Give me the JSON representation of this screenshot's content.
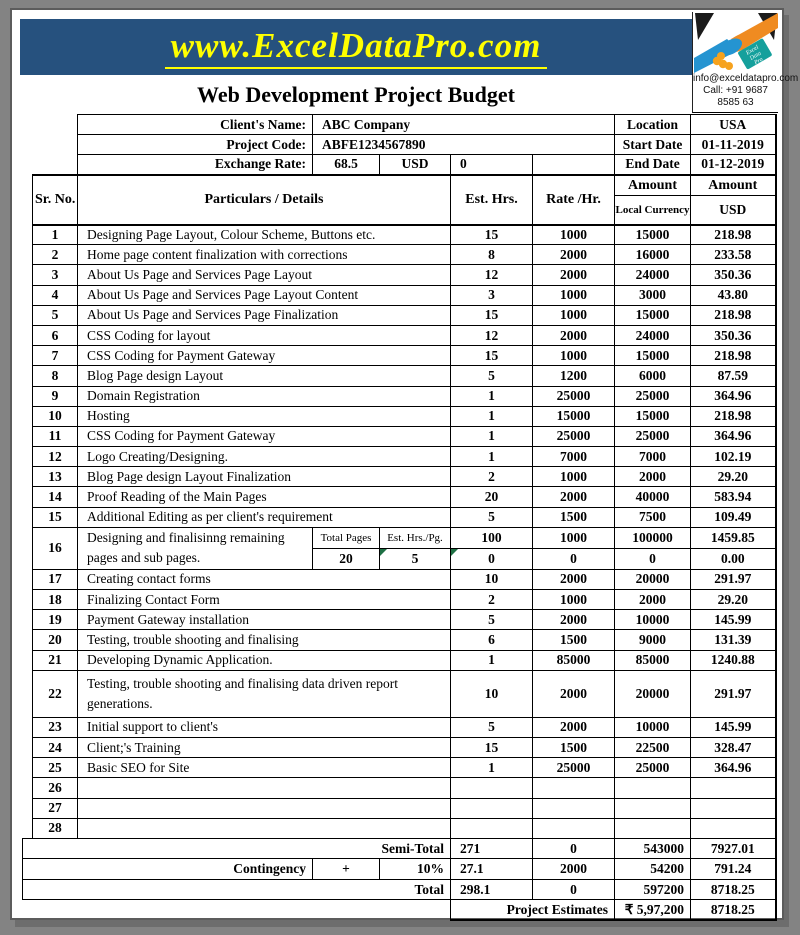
{
  "banner": {
    "url_text": "www.ExcelDataPro.com",
    "bg_color": "#26517E",
    "text_color": "#FFFF00"
  },
  "brand": {
    "logo": "handshake-logo",
    "ribbon_lines": [
      "Excel",
      "Data",
      "Pro"
    ],
    "email": "info@exceldatapro.com",
    "phone": "Call: +91 9687 8585 63"
  },
  "title": "Web Development Project Budget",
  "info": {
    "client_label": "Client's Name:",
    "client_value": "ABC Company",
    "project_label": "Project Code:",
    "project_value": "ABFE1234567890",
    "exchange_label": "Exchange Rate:",
    "exchange_rate": "68.5",
    "exchange_currency": "USD",
    "exchange_converted": "0",
    "location_label": "Location",
    "location_value": "USA",
    "start_label": "Start Date",
    "start_value": "01-11-2019",
    "end_label": "End Date",
    "end_value": "01-12-2019"
  },
  "table": {
    "headers": {
      "sr": "Sr. No.",
      "particulars": "Particulars / Details",
      "est_hrs": "Est. Hrs.",
      "rate_hr": "Rate /Hr.",
      "amount": "Amount",
      "amount_sub": "(Local Currency)",
      "usd": "Amount",
      "usd_sub": "USD"
    },
    "rows": [
      {
        "sr": "1",
        "particulars": "Designing Page Layout, Colour Scheme, Buttons etc.",
        "est_hrs": "15",
        "rate": "1000",
        "amount": "15000",
        "usd": "218.98"
      },
      {
        "sr": "2",
        "particulars": "Home page content finalization with corrections",
        "est_hrs": "8",
        "rate": "2000",
        "amount": "16000",
        "usd": "233.58"
      },
      {
        "sr": "3",
        "particulars": "About Us Page and Services Page Layout",
        "est_hrs": "12",
        "rate": "2000",
        "amount": "24000",
        "usd": "350.36"
      },
      {
        "sr": "4",
        "particulars": "About Us Page and Services Page Layout Content",
        "est_hrs": "3",
        "rate": "1000",
        "amount": "3000",
        "usd": "43.80"
      },
      {
        "sr": "5",
        "particulars": "About Us Page and Services Page Finalization",
        "est_hrs": "15",
        "rate": "1000",
        "amount": "15000",
        "usd": "218.98"
      },
      {
        "sr": "6",
        "particulars": "CSS Coding for layout",
        "est_hrs": "12",
        "rate": "2000",
        "amount": "24000",
        "usd": "350.36"
      },
      {
        "sr": "7",
        "particulars": "CSS Coding for Payment Gateway",
        "est_hrs": "15",
        "rate": "1000",
        "amount": "15000",
        "usd": "218.98"
      },
      {
        "sr": "8",
        "particulars": "Blog Page design Layout",
        "est_hrs": "5",
        "rate": "1200",
        "amount": "6000",
        "usd": "87.59"
      },
      {
        "sr": "9",
        "particulars": "Domain Registration",
        "est_hrs": "1",
        "rate": "25000",
        "amount": "25000",
        "usd": "364.96"
      },
      {
        "sr": "10",
        "particulars": "Hosting",
        "est_hrs": "1",
        "rate": "15000",
        "amount": "15000",
        "usd": "218.98"
      },
      {
        "sr": "11",
        "particulars": "CSS Coding for Payment Gateway",
        "est_hrs": "1",
        "rate": "25000",
        "amount": "25000",
        "usd": "364.96"
      },
      {
        "sr": "12",
        "particulars": "Logo Creating/Designing.",
        "est_hrs": "1",
        "rate": "7000",
        "amount": "7000",
        "usd": "102.19"
      },
      {
        "sr": "13",
        "particulars": "Blog Page design Layout Finalization",
        "est_hrs": "2",
        "rate": "1000",
        "amount": "2000",
        "usd": "29.20"
      },
      {
        "sr": "14",
        "particulars": "Proof Reading of the Main Pages",
        "est_hrs": "20",
        "rate": "2000",
        "amount": "40000",
        "usd": "583.94"
      },
      {
        "sr": "15",
        "particulars": "Additional Editing as per client's requirement",
        "est_hrs": "5",
        "rate": "1500",
        "amount": "7500",
        "usd": "109.49"
      },
      {
        "sr": "16",
        "type": "split",
        "particulars_lines": [
          "Designing and finalisinng remaining",
          "pages and sub pages."
        ],
        "sub_headers": [
          "Total Pages",
          "Est. Hrs./Pg."
        ],
        "sub_values": [
          "20",
          "5"
        ],
        "line1": {
          "est_hrs": "100",
          "rate": "1000",
          "amount": "100000",
          "usd": "1459.85"
        },
        "line2": {
          "est_hrs": "0",
          "rate": "0",
          "amount": "0",
          "usd": "0.00"
        }
      },
      {
        "sr": "17",
        "particulars": "Creating contact forms",
        "est_hrs": "10",
        "rate": "2000",
        "amount": "20000",
        "usd": "291.97"
      },
      {
        "sr": "18",
        "particulars": "Finalizing Contact Form",
        "est_hrs": "2",
        "rate": "1000",
        "amount": "2000",
        "usd": "29.20"
      },
      {
        "sr": "19",
        "particulars": "Payment Gateway installation",
        "est_hrs": "5",
        "rate": "2000",
        "amount": "10000",
        "usd": "145.99"
      },
      {
        "sr": "20",
        "particulars": "Testing, trouble shooting and finalising",
        "est_hrs": "6",
        "rate": "1500",
        "amount": "9000",
        "usd": "131.39"
      },
      {
        "sr": "21",
        "particulars": "Developing Dynamic Application.",
        "est_hrs": "1",
        "rate": "85000",
        "amount": "85000",
        "usd": "1240.88"
      },
      {
        "sr": "22",
        "type": "tall",
        "particulars": "Testing, trouble shooting and finalising data driven report generations.",
        "est_hrs": "10",
        "rate": "2000",
        "amount": "20000",
        "usd": "291.97"
      },
      {
        "sr": "23",
        "particulars": "Initial support to client's",
        "est_hrs": "5",
        "rate": "2000",
        "amount": "10000",
        "usd": "145.99"
      },
      {
        "sr": "24",
        "particulars": "Client;'s Training",
        "est_hrs": "15",
        "rate": "1500",
        "amount": "22500",
        "usd": "328.47"
      },
      {
        "sr": "25",
        "particulars": "Basic SEO for Site",
        "est_hrs": "1",
        "rate": "25000",
        "amount": "25000",
        "usd": "364.96"
      },
      {
        "sr": "26",
        "type": "empty",
        "particulars": "",
        "est_hrs": "",
        "rate": "",
        "amount": "",
        "usd": ""
      },
      {
        "sr": "27",
        "type": "empty",
        "particulars": "",
        "est_hrs": "",
        "rate": "",
        "amount": "",
        "usd": ""
      },
      {
        "sr": "28",
        "type": "empty",
        "particulars": "",
        "est_hrs": "",
        "rate": "",
        "amount": "",
        "usd": ""
      }
    ],
    "totals": {
      "semi_total": {
        "label": "Semi-Total",
        "est_hrs": "271",
        "rate": "0",
        "amount": "543000",
        "usd": "7927.01"
      },
      "contingency": {
        "label": "Contingency",
        "operator": "+",
        "percent": "10%",
        "est_hrs": "27.1",
        "rate": "2000",
        "amount": "54200",
        "usd": "791.24"
      },
      "total": {
        "label": "Total",
        "est_hrs": "298.1",
        "rate": "0",
        "amount": "597200",
        "usd": "8718.25"
      },
      "project_estimates": {
        "label": "Project Estimates",
        "amount": "₹ 5,97,200",
        "usd": "8718.25"
      }
    },
    "comment_flag_color": "#1E7044"
  }
}
